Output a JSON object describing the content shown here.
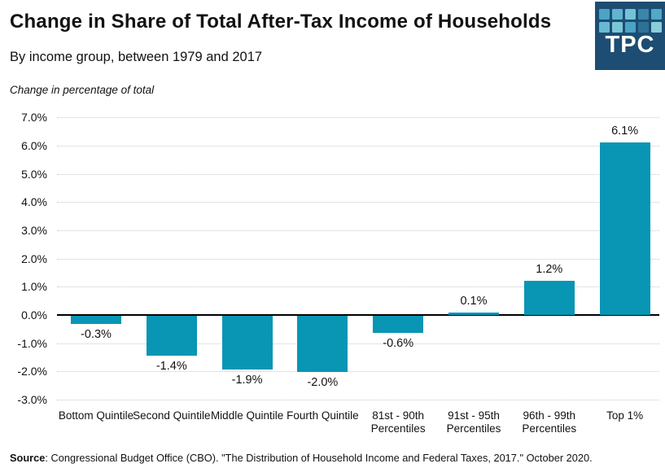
{
  "header": {
    "title": "Change in Share of Total After-Tax Income of Households",
    "subtitle": "By income group, between 1979 and 2017",
    "axis_note": "Change in percentage of total"
  },
  "logo": {
    "text": "TPC",
    "bg": "#1d4d72",
    "square_colors": [
      "#4ba4c4",
      "#60b4ce",
      "#74c2d6",
      "#3b85ab",
      "#50a9c6",
      "#68b9d1",
      "#7cc6d8",
      "#4ba4c4",
      "#2e7197",
      "#89cdda"
    ]
  },
  "chart_data": {
    "type": "bar",
    "title": "Change in Share of Total After-Tax Income of Households",
    "subtitle": "By income group, between 1979 and 2017",
    "ylabel": "Change in percentage of total",
    "categories": [
      "Bottom Quintile",
      "Second Quintile",
      "Middle Quintile",
      "Fourth Quintile",
      "81st - 90th Percentiles",
      "91st - 95th Percentiles",
      "96th - 99th Percentiles",
      "Top 1%"
    ],
    "values": [
      -0.3,
      -1.4,
      -1.9,
      -2.0,
      -0.6,
      0.1,
      1.2,
      6.1
    ],
    "value_labels": [
      "-0.3%",
      "-1.4%",
      "-1.9%",
      "-2.0%",
      "-0.6%",
      "0.1%",
      "1.2%",
      "6.1%"
    ],
    "ylim": [
      -3,
      7
    ],
    "yticks": [
      7,
      6,
      5,
      4,
      3,
      2,
      1,
      0,
      -1,
      -2,
      -3
    ],
    "ytick_labels": [
      "7.0%",
      "6.0%",
      "5.0%",
      "4.0%",
      "3.0%",
      "2.0%",
      "1.0%",
      "0.0%",
      "-1.0%",
      "-2.0%",
      "-3.0%"
    ],
    "bar_color": "#0995b4",
    "grid": true,
    "legend": "none"
  },
  "footer": {
    "source_label": "Source",
    "source_text": ": Congressional Budget Office (CBO). \"The Distribution of Household Income and Federal Taxes, 2017.\" October 2020."
  }
}
